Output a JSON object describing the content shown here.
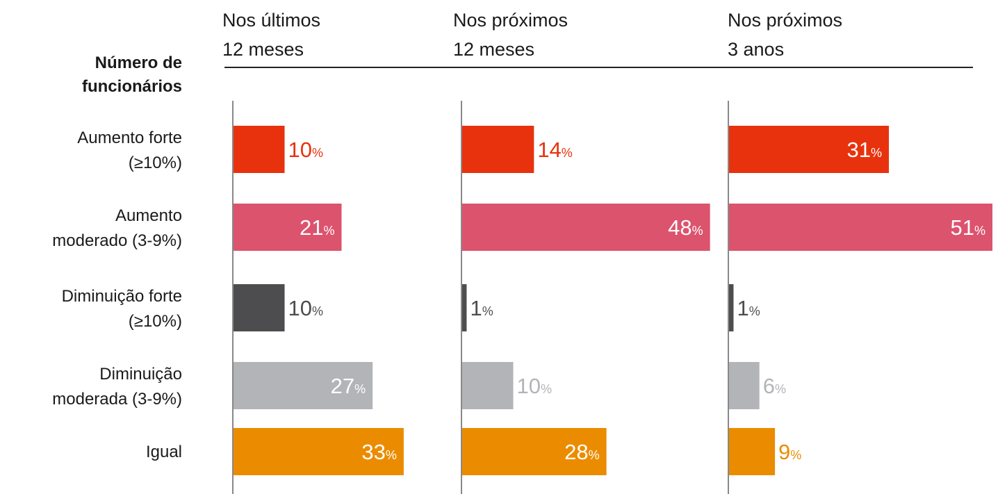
{
  "chart_data": {
    "type": "bar",
    "title": "Número de\nfuncionários",
    "categories": [
      "Aumento forte\n(≥10%)",
      "Aumento\nmoderado (3-9%)",
      "Diminuição forte\n(≥10%)",
      "Diminuição\nmoderada (3-9%)",
      "Igual"
    ],
    "colors": [
      "#e8320e",
      "#dc536e",
      "#4d4d4f",
      "#b3b4b7",
      "#eb8c00"
    ],
    "series": [
      {
        "name": "Nos últimos\n12 meses",
        "values": [
          10,
          21,
          10,
          27,
          33
        ],
        "value_labels": [
          "10%",
          "21%",
          "10%",
          "27%",
          "33%"
        ]
      },
      {
        "name": "Nos próximos\n12 meses",
        "values": [
          14,
          48,
          1,
          10,
          28
        ],
        "value_labels": [
          "14%",
          "48%",
          "1%",
          "10%",
          "28%"
        ]
      },
      {
        "name": "Nos próximos\n3 anos",
        "values": [
          31,
          51,
          1,
          6,
          9
        ],
        "value_labels": [
          "31%",
          "51%",
          "1%",
          "6%",
          "9%"
        ]
      }
    ]
  }
}
